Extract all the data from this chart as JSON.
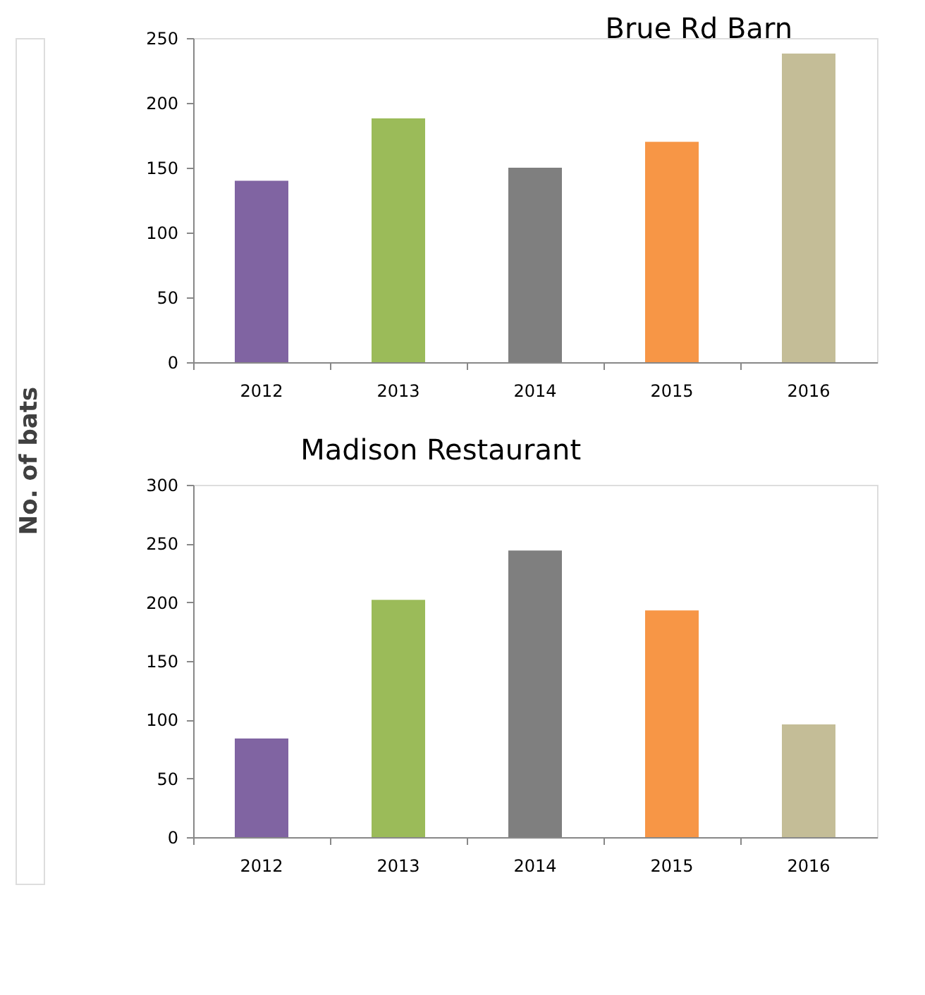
{
  "chart_data": [
    {
      "type": "bar",
      "title": "Brue Rd Barn",
      "ylabel": "No. of bats",
      "categories": [
        "2012",
        "2013",
        "2014",
        "2015",
        "2016"
      ],
      "values": [
        140,
        188,
        150,
        170,
        238
      ],
      "colors": [
        "#8064a2",
        "#9bbb59",
        "#7f7f7f",
        "#f79646",
        "#c4bd97"
      ],
      "ylim": [
        0,
        250
      ],
      "yticks": [
        0,
        50,
        100,
        150,
        200,
        250
      ],
      "grid": false
    },
    {
      "type": "bar",
      "title": "Madison Restaurant",
      "categories": [
        "2012",
        "2013",
        "2014",
        "2015",
        "2016"
      ],
      "values": [
        84,
        202,
        244,
        193,
        96
      ],
      "colors": [
        "#8064a2",
        "#9bbb59",
        "#7f7f7f",
        "#f79646",
        "#c4bd97"
      ],
      "ylim": [
        0,
        300
      ],
      "yticks": [
        0,
        50,
        100,
        150,
        200,
        250,
        300
      ],
      "grid": false
    }
  ]
}
